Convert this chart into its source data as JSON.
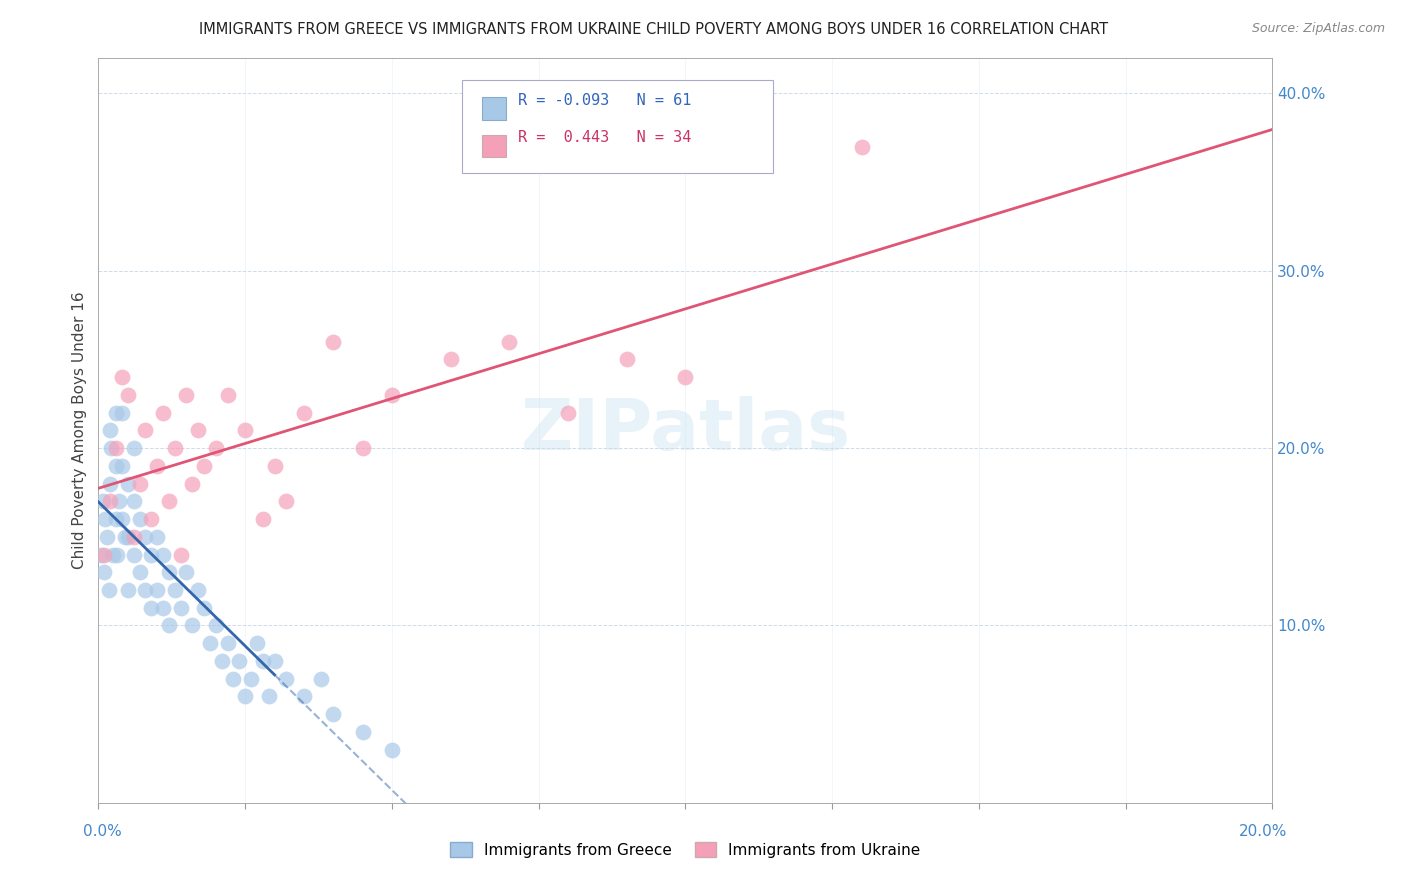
{
  "title": "IMMIGRANTS FROM GREECE VS IMMIGRANTS FROM UKRAINE CHILD POVERTY AMONG BOYS UNDER 16 CORRELATION CHART",
  "source": "Source: ZipAtlas.com",
  "ylabel": "Child Poverty Among Boys Under 16",
  "watermark": "ZIPatlas",
  "xlim": [
    0.0,
    0.2
  ],
  "ylim": [
    0.0,
    0.42
  ],
  "greece_color": "#a8c8e8",
  "ukraine_color": "#f4a0b8",
  "greece_line_color": "#3366aa",
  "ukraine_line_color": "#e05575",
  "greece_label": "Immigrants from Greece",
  "ukraine_label": "Immigrants from Ukraine",
  "legend_greece_R": -0.093,
  "legend_greece_N": 61,
  "legend_ukraine_R": 0.443,
  "legend_ukraine_N": 34,
  "greece_x": [
    0.0005,
    0.0008,
    0.001,
    0.0012,
    0.0015,
    0.0018,
    0.002,
    0.002,
    0.0022,
    0.0025,
    0.003,
    0.003,
    0.003,
    0.0032,
    0.0035,
    0.004,
    0.004,
    0.004,
    0.0045,
    0.005,
    0.005,
    0.005,
    0.006,
    0.006,
    0.006,
    0.007,
    0.007,
    0.008,
    0.008,
    0.009,
    0.009,
    0.01,
    0.01,
    0.011,
    0.011,
    0.012,
    0.012,
    0.013,
    0.014,
    0.015,
    0.016,
    0.017,
    0.018,
    0.019,
    0.02,
    0.021,
    0.022,
    0.023,
    0.024,
    0.025,
    0.026,
    0.027,
    0.028,
    0.029,
    0.03,
    0.032,
    0.035,
    0.038,
    0.04,
    0.045,
    0.05
  ],
  "greece_y": [
    0.14,
    0.17,
    0.13,
    0.16,
    0.15,
    0.12,
    0.21,
    0.18,
    0.2,
    0.14,
    0.22,
    0.19,
    0.16,
    0.14,
    0.17,
    0.22,
    0.19,
    0.16,
    0.15,
    0.18,
    0.15,
    0.12,
    0.2,
    0.17,
    0.14,
    0.16,
    0.13,
    0.15,
    0.12,
    0.14,
    0.11,
    0.15,
    0.12,
    0.14,
    0.11,
    0.13,
    0.1,
    0.12,
    0.11,
    0.13,
    0.1,
    0.12,
    0.11,
    0.09,
    0.1,
    0.08,
    0.09,
    0.07,
    0.08,
    0.06,
    0.07,
    0.09,
    0.08,
    0.06,
    0.08,
    0.07,
    0.06,
    0.07,
    0.05,
    0.04,
    0.03
  ],
  "ukraine_x": [
    0.001,
    0.002,
    0.003,
    0.004,
    0.005,
    0.006,
    0.007,
    0.008,
    0.009,
    0.01,
    0.011,
    0.012,
    0.013,
    0.014,
    0.015,
    0.016,
    0.017,
    0.018,
    0.02,
    0.022,
    0.025,
    0.028,
    0.03,
    0.032,
    0.035,
    0.04,
    0.045,
    0.05,
    0.06,
    0.07,
    0.08,
    0.09,
    0.1,
    0.13
  ],
  "ukraine_y": [
    0.14,
    0.17,
    0.2,
    0.24,
    0.23,
    0.15,
    0.18,
    0.21,
    0.16,
    0.19,
    0.22,
    0.17,
    0.2,
    0.14,
    0.23,
    0.18,
    0.21,
    0.19,
    0.2,
    0.23,
    0.21,
    0.16,
    0.19,
    0.17,
    0.22,
    0.26,
    0.2,
    0.23,
    0.25,
    0.26,
    0.22,
    0.25,
    0.24,
    0.37
  ]
}
